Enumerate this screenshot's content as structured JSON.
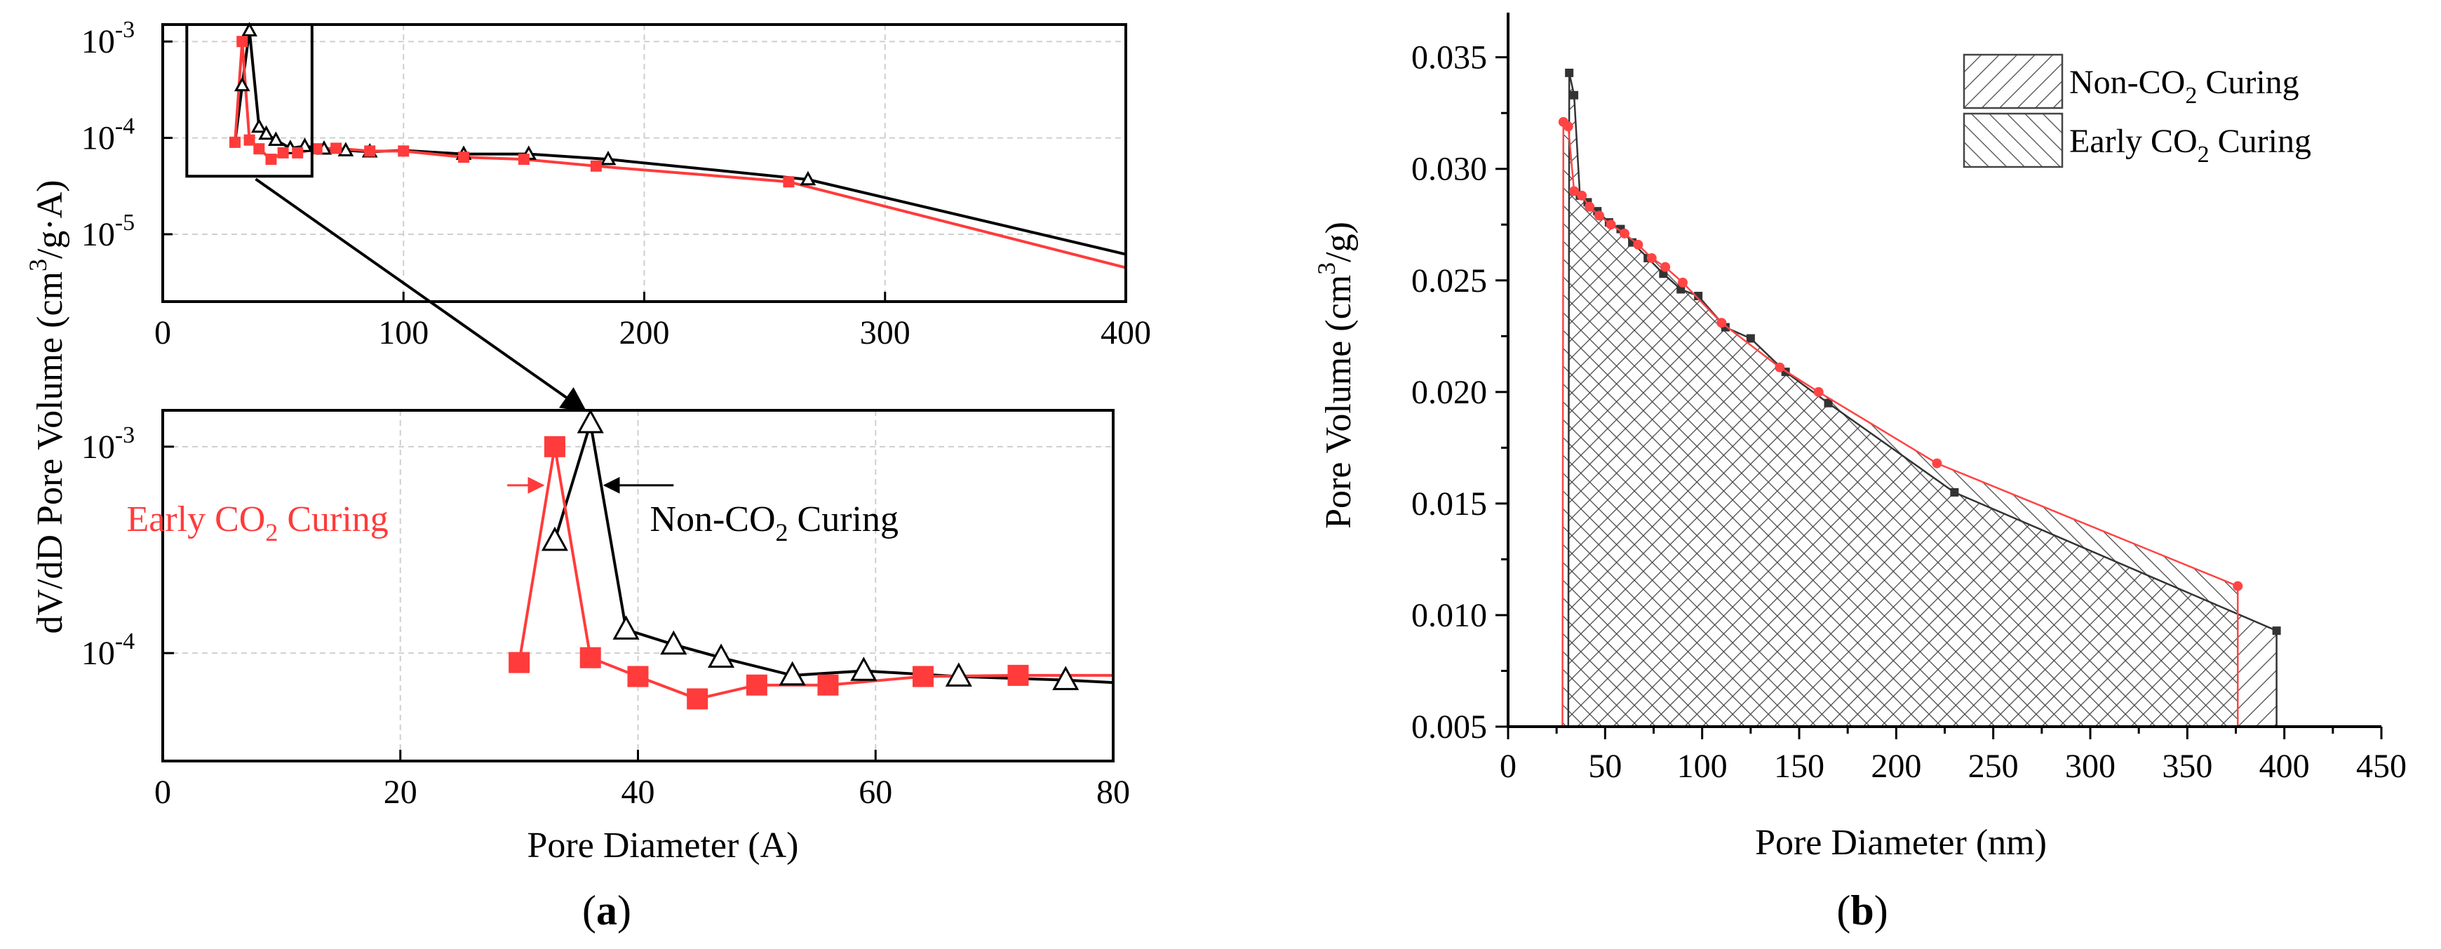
{
  "chart_data": [
    {
      "panel": "(a)",
      "panel_letter": "a",
      "type": "line",
      "subplot": "full-range",
      "ylabel": "dV/dD Pore Volume (cm3/g·A)",
      "ylabel_parts": {
        "pre": "dV/dD Pore Volume (cm",
        "sup": "3",
        "post": "/g·A)"
      },
      "yscale": "log",
      "xlim": [
        0,
        400
      ],
      "ylim": [
        2e-06,
        0.0015
      ],
      "x_ticks": [
        0,
        100,
        200,
        300,
        400
      ],
      "x_tick_labels": [
        "0",
        "100",
        "200",
        "300",
        "400"
      ],
      "y_tick_labels": [
        {
          "value": 0.001,
          "base": "10",
          "exp": "-3"
        },
        {
          "value": 0.0001,
          "base": "10",
          "exp": "-4"
        },
        {
          "value": 1e-05,
          "base": "10",
          "exp": "-5"
        }
      ],
      "grid": true,
      "zoom_box": {
        "x": [
          10,
          62
        ],
        "y": [
          4e-05,
          0.0015
        ]
      },
      "series": [
        {
          "color": "#000000",
          "marker": "triangle-open",
          "x": [
            30,
            33,
            36,
            40,
            43,
            47,
            53,
            59,
            67,
            76,
            86,
            100,
            125,
            152,
            185,
            268,
            400
          ],
          "y": [
            9e-05,
            0.00035,
            0.0013,
            0.00013,
            0.00011,
            9.5e-05,
            7.8e-05,
            8.2e-05,
            7.7e-05,
            7.4e-05,
            7.2e-05,
            7.4e-05,
            6.8e-05,
            6.8e-05,
            6e-05,
            3.7e-05,
            6.2e-06
          ],
          "marker_x": [
            33,
            36,
            40,
            43,
            47,
            53,
            59,
            67,
            76,
            86,
            125,
            152,
            185,
            268
          ]
        },
        {
          "color": "#ff3b3b",
          "marker": "square-filled",
          "x": [
            30,
            33,
            36,
            40,
            45,
            50,
            56,
            64,
            72,
            86,
            100,
            125,
            150,
            180,
            260,
            400
          ],
          "y": [
            9e-05,
            0.001,
            9.5e-05,
            7.7e-05,
            6e-05,
            7e-05,
            7e-05,
            7.7e-05,
            7.8e-05,
            7.3e-05,
            7.3e-05,
            6.3e-05,
            6e-05,
            5.1e-05,
            3.5e-05,
            4.5e-06
          ],
          "marker_x": [
            30,
            33,
            36,
            40,
            45,
            50,
            56,
            64,
            72,
            86,
            100,
            125,
            150,
            180,
            260
          ]
        }
      ]
    },
    {
      "type": "line",
      "subplot": "zoomed-inset",
      "xlabel": "Pore Diameter (A)",
      "yscale": "log",
      "xlim": [
        0,
        80
      ],
      "ylim": [
        3e-05,
        0.0015
      ],
      "x_ticks": [
        0,
        20,
        40,
        60,
        80
      ],
      "x_tick_labels": [
        "0",
        "20",
        "40",
        "60",
        "80"
      ],
      "y_tick_labels": [
        {
          "value": 0.001,
          "base": "10",
          "exp": "-3"
        },
        {
          "value": 0.0001,
          "base": "10",
          "exp": "-4"
        }
      ],
      "grid": true,
      "annotations": [
        {
          "color": "#ff3b3b",
          "pre": "Early CO",
          "sub": "2",
          "post": " Curing",
          "x": 19,
          "y": 0.00045,
          "anchor": "end"
        },
        {
          "color": "#000000",
          "pre": "Non-CO",
          "sub": "2",
          "post": " Curing",
          "x": 41,
          "y": 0.00045,
          "anchor": "start"
        }
      ],
      "series": [
        {
          "color": "#000000",
          "marker": "triangle-open",
          "x": [
            33,
            36,
            39,
            43,
            47,
            53,
            59,
            67,
            76,
            80
          ],
          "y": [
            0.00035,
            0.0013,
            0.00013,
            0.00011,
            9.5e-05,
            7.8e-05,
            8.2e-05,
            7.7e-05,
            7.4e-05,
            7.2e-05
          ],
          "marker_x": [
            33,
            36,
            39,
            43,
            47,
            53,
            59,
            67,
            76
          ]
        },
        {
          "color": "#ff3b3b",
          "marker": "square-filled",
          "x": [
            30,
            33,
            36,
            40,
            45,
            50,
            56,
            64,
            72,
            80
          ],
          "y": [
            9e-05,
            0.001,
            9.5e-05,
            7.7e-05,
            6e-05,
            7e-05,
            7e-05,
            7.7e-05,
            7.8e-05,
            7.8e-05
          ],
          "marker_x": [
            30,
            33,
            36,
            40,
            45,
            50,
            56,
            64,
            72
          ]
        }
      ]
    },
    {
      "panel": "(b)",
      "panel_letter": "b",
      "type": "area",
      "xlabel": "Pore Diameter (nm)",
      "ylabel": "Pore Volume (cm3/g)",
      "ylabel_parts": {
        "pre": "Pore Volume (cm",
        "sup": "3",
        "post": "/g)"
      },
      "xlim": [
        0,
        450
      ],
      "ylim": [
        0.005,
        0.037
      ],
      "x_ticks": [
        0,
        50,
        100,
        150,
        200,
        250,
        300,
        350,
        400,
        450
      ],
      "x_tick_labels": [
        "0",
        "50",
        "100",
        "150",
        "200",
        "250",
        "300",
        "350",
        "400",
        "450"
      ],
      "y_ticks": [
        0.005,
        0.01,
        0.015,
        0.02,
        0.025,
        0.03,
        0.035
      ],
      "y_tick_labels": [
        "0.005",
        "0.010",
        "0.015",
        "0.020",
        "0.025",
        "0.030",
        "0.035"
      ],
      "grid": false,
      "legend_position": "top-right",
      "series": [
        {
          "legend": {
            "pre": "Non-CO",
            "sub": "2",
            "post": " Curing"
          },
          "color": "#333333",
          "hatch": "diagonal",
          "x": [
            31,
            31.5,
            34,
            37,
            41,
            46,
            52,
            58,
            64,
            72,
            80,
            89,
            98,
            112,
            125,
            143,
            165,
            230,
            396
          ],
          "y": [
            0.005,
            0.0343,
            0.0333,
            0.0288,
            0.0285,
            0.0281,
            0.0276,
            0.0273,
            0.0267,
            0.026,
            0.0253,
            0.0246,
            0.0243,
            0.0229,
            0.0224,
            0.0209,
            0.0195,
            0.0155,
            0.0093
          ]
        },
        {
          "legend": {
            "pre": "Early CO",
            "sub": "2",
            "post": " Curing"
          },
          "color": "#ff4444",
          "hatch": "cross-diagonal",
          "x": [
            28,
            28.5,
            31,
            34,
            38,
            42,
            47,
            53,
            60,
            67,
            74,
            81,
            90,
            110,
            140,
            160,
            221,
            376
          ],
          "y": [
            0.005,
            0.0321,
            0.0319,
            0.029,
            0.0288,
            0.0283,
            0.0279,
            0.0275,
            0.0271,
            0.0266,
            0.026,
            0.0256,
            0.0249,
            0.0231,
            0.0211,
            0.02,
            0.0168,
            0.0113
          ]
        }
      ]
    }
  ]
}
